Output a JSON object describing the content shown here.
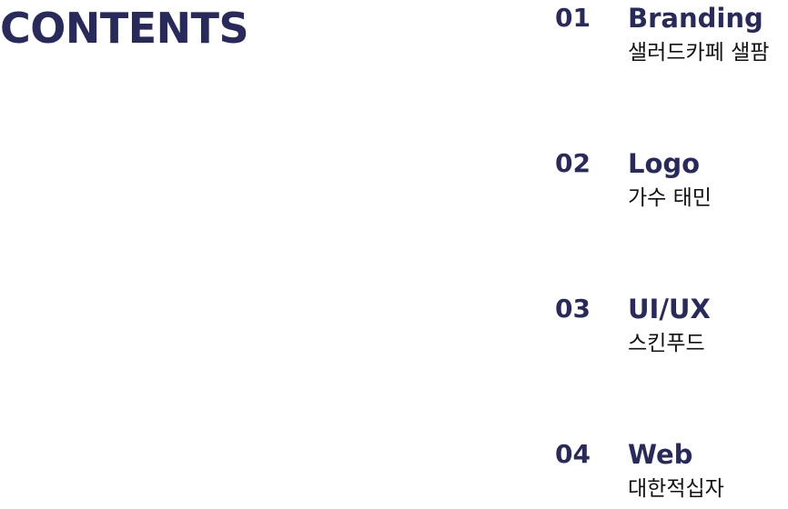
{
  "page": {
    "title": "CONTENTS"
  },
  "contents": [
    {
      "number": "01",
      "heading": "Branding",
      "subtitle": "샐러드카페 샐팜"
    },
    {
      "number": "02",
      "heading": "Logo",
      "subtitle": "가수 태민"
    },
    {
      "number": "03",
      "heading": "UI/UX",
      "subtitle": "스킨푸드"
    },
    {
      "number": "04",
      "heading": "Web",
      "subtitle": "대한적십자"
    }
  ],
  "colors": {
    "title": "#282a5c",
    "subtitle": "#111111",
    "background": "#ffffff"
  }
}
